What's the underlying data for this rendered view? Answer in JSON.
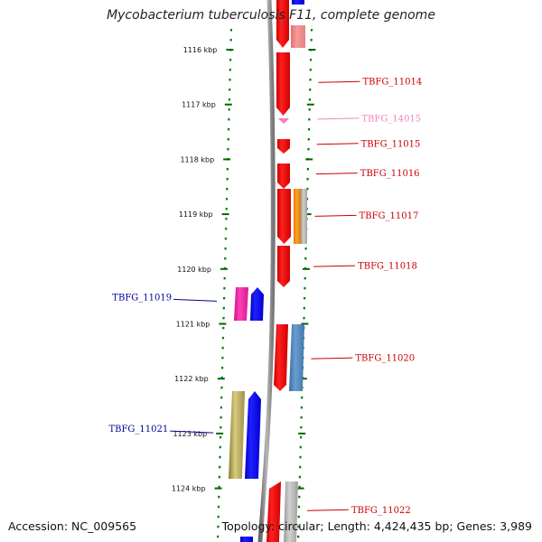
{
  "title": "Mycobacterium tuberculosis F11, complete genome",
  "footer": {
    "accession": "Accession: NC_009565",
    "info": "Topology: circular; Length: 4,424,435 bp; Genes: 3,989"
  },
  "colors": {
    "forward_label": "#cc0000",
    "reverse_label": "#000099",
    "dim_label": "#ee88bb",
    "tick": "#006600",
    "backbone": "#888888"
  },
  "scale": {
    "unit": "kbp",
    "ticks": [
      {
        "value": 1116,
        "label": "1116 kbp"
      },
      {
        "value": 1117,
        "label": "1117 kbp"
      },
      {
        "value": 1118,
        "label": "1118 kbp"
      },
      {
        "value": 1119,
        "label": "1119 kbp"
      },
      {
        "value": 1120,
        "label": "1120 kbp"
      },
      {
        "value": 1121,
        "label": "1121 kbp"
      },
      {
        "value": 1122,
        "label": "1122 kbp"
      },
      {
        "value": 1123,
        "label": "1123 kbp"
      },
      {
        "value": 1124,
        "label": "1124 kbp"
      }
    ]
  },
  "gene_labels": [
    {
      "text": "TBFG_11014",
      "side": "right",
      "kbp": 1116.58,
      "style": "forward"
    },
    {
      "text": "TBFG_14015",
      "side": "right",
      "kbp": 1117.25,
      "style": "dim"
    },
    {
      "text": "TBFG_11015",
      "side": "right",
      "kbp": 1117.71,
      "style": "forward"
    },
    {
      "text": "TBFG_11016",
      "side": "right",
      "kbp": 1118.25,
      "style": "forward"
    },
    {
      "text": "TBFG_11017",
      "side": "right",
      "kbp": 1119.02,
      "style": "forward"
    },
    {
      "text": "TBFG_11018",
      "side": "right",
      "kbp": 1119.94,
      "style": "forward"
    },
    {
      "text": "TBFG_11019",
      "side": "left",
      "kbp": 1120.57,
      "style": "reverse"
    },
    {
      "text": "TBFG_11020",
      "side": "right",
      "kbp": 1121.62,
      "style": "forward"
    },
    {
      "text": "TBFG_11021",
      "side": "left",
      "kbp": 1122.97,
      "style": "reverse"
    },
    {
      "text": "TBFG_11022",
      "side": "right",
      "kbp": 1124.39,
      "style": "forward"
    }
  ]
}
